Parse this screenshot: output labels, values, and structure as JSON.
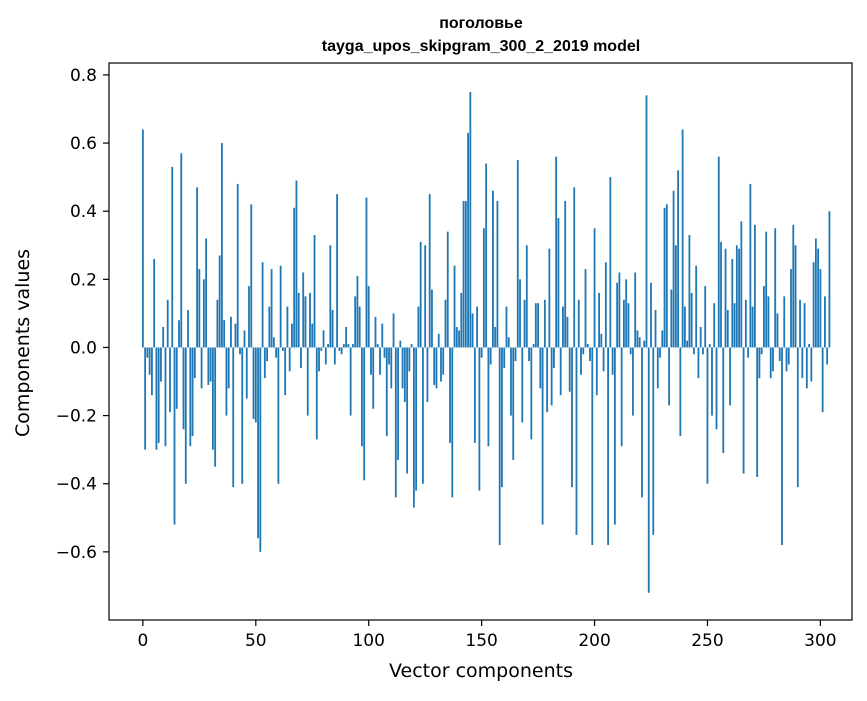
{
  "chart_data": {
    "type": "bar",
    "title": "поголовье",
    "subtitle": "tayga_upos_skipgram_300_2_2019 model",
    "xlabel": "Vector components",
    "ylabel": "Components values",
    "xlim": [
      -15,
      314
    ],
    "ylim": [
      -0.8,
      0.835
    ],
    "xticks": [
      0,
      50,
      100,
      150,
      200,
      250,
      300
    ],
    "yticks": [
      -0.6,
      -0.4,
      -0.2,
      0.0,
      0.2,
      0.4,
      0.6,
      0.8
    ],
    "ytick_labels": [
      "−0.6",
      "−0.4",
      "−0.2",
      "0.0",
      "0.2",
      "0.4",
      "0.6",
      "0.8"
    ],
    "grid": false,
    "bar_color": "#1f77b4",
    "values": [
      0.64,
      -0.3,
      -0.03,
      -0.08,
      -0.14,
      0.26,
      -0.3,
      -0.28,
      -0.1,
      0.06,
      -0.29,
      0.14,
      -0.19,
      0.53,
      -0.52,
      -0.18,
      0.08,
      0.57,
      -0.24,
      -0.4,
      0.11,
      -0.29,
      -0.26,
      -0.09,
      0.47,
      0.23,
      -0.12,
      0.2,
      0.32,
      -0.11,
      -0.1,
      -0.3,
      -0.35,
      0.14,
      0.27,
      0.6,
      0.08,
      -0.2,
      -0.12,
      0.09,
      -0.41,
      0.07,
      0.48,
      -0.02,
      -0.4,
      0.05,
      -0.15,
      0.18,
      0.42,
      -0.21,
      -0.22,
      -0.56,
      -0.6,
      0.25,
      -0.09,
      -0.04,
      0.12,
      0.23,
      0.03,
      -0.03,
      -0.4,
      0.24,
      -0.01,
      -0.14,
      0.12,
      -0.07,
      0.07,
      0.41,
      0.49,
      0.16,
      -0.06,
      0.22,
      0.15,
      -0.2,
      0.16,
      0.07,
      0.33,
      -0.27,
      -0.07,
      -0.01,
      0.05,
      -0.05,
      0.01,
      0.3,
      0.11,
      -0.05,
      0.45,
      -0.01,
      -0.02,
      0.01,
      0.06,
      0.01,
      -0.2,
      0.01,
      0.15,
      0.21,
      0.12,
      -0.29,
      -0.39,
      0.44,
      0.18,
      -0.08,
      -0.18,
      0.09,
      0.01,
      -0.08,
      0.07,
      -0.03,
      -0.26,
      -0.05,
      -0.12,
      0.1,
      -0.44,
      -0.33,
      0.02,
      -0.12,
      -0.16,
      -0.37,
      -0.07,
      0.01,
      -0.47,
      -0.42,
      0.12,
      0.31,
      -0.4,
      0.3,
      -0.16,
      0.45,
      0.17,
      -0.11,
      -0.12,
      0.04,
      -0.1,
      -0.08,
      0.14,
      0.34,
      -0.28,
      -0.44,
      0.24,
      0.06,
      0.05,
      0.16,
      0.43,
      0.43,
      0.63,
      0.75,
      0.1,
      -0.28,
      0.12,
      -0.42,
      -0.03,
      0.35,
      0.54,
      -0.29,
      -0.05,
      0.46,
      0.06,
      0.43,
      -0.58,
      -0.41,
      -0.06,
      0.12,
      0.03,
      -0.2,
      -0.33,
      -0.04,
      0.55,
      0.2,
      -0.22,
      0.14,
      0.3,
      -0.04,
      -0.27,
      0.01,
      0.13,
      0.13,
      -0.12,
      -0.52,
      0.14,
      -0.19,
      0.29,
      -0.17,
      -0.06,
      0.56,
      0.38,
      -0.14,
      0.12,
      0.43,
      0.09,
      -0.13,
      -0.41,
      0.47,
      -0.55,
      0.14,
      -0.08,
      -0.02,
      0.23,
      0.01,
      -0.04,
      -0.58,
      0.35,
      -0.14,
      0.16,
      0.04,
      -0.07,
      0.25,
      -0.58,
      0.5,
      -0.08,
      -0.52,
      0.19,
      0.22,
      -0.29,
      0.14,
      0.2,
      0.13,
      -0.02,
      -0.2,
      0.22,
      0.05,
      0.03,
      -0.44,
      0.02,
      0.74,
      -0.72,
      0.19,
      -0.55,
      0.11,
      -0.12,
      -0.03,
      0.05,
      0.41,
      0.42,
      -0.17,
      0.17,
      0.46,
      0.3,
      0.52,
      -0.26,
      0.64,
      0.12,
      0.02,
      0.33,
      0.16,
      -0.02,
      0.24,
      -0.09,
      0.06,
      -0.02,
      0.18,
      -0.4,
      0.01,
      -0.2,
      0.13,
      -0.24,
      0.56,
      0.31,
      -0.31,
      0.29,
      0.11,
      -0.17,
      0.26,
      0.13,
      0.3,
      0.29,
      0.37,
      -0.37,
      0.14,
      -0.03,
      0.48,
      0.12,
      0.36,
      -0.38,
      -0.09,
      -0.02,
      0.18,
      0.34,
      0.15,
      -0.09,
      -0.07,
      0.35,
      0.1,
      -0.04,
      -0.58,
      0.15,
      -0.07,
      -0.05,
      0.23,
      0.36,
      0.3,
      -0.41,
      0.14,
      -0.09,
      0.13,
      -0.12,
      0.01,
      -0.1,
      0.25,
      0.32,
      0.29,
      0.23,
      -0.19,
      0.15,
      -0.05,
      0.4
    ]
  }
}
